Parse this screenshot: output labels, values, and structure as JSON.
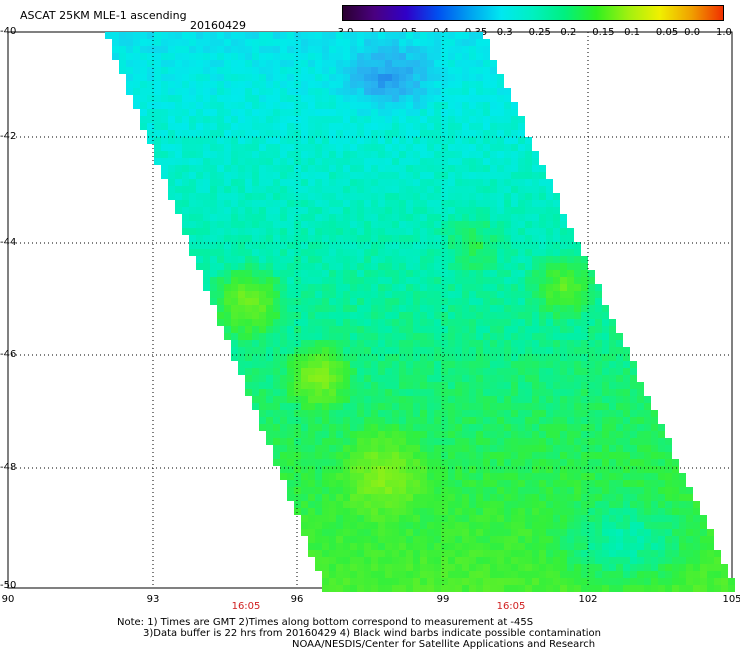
{
  "title": "ASCAT 25KM MLE-1 ascending",
  "date": "20160429",
  "colorbar": {
    "labels": [
      "-3.0",
      "-1.0",
      "-0.5",
      "-0.4",
      "-0.35",
      "-0.3",
      "-0.25",
      "-0.2",
      "-0.15",
      "-0.1",
      "-0.05",
      "0.0",
      "1.0"
    ],
    "colors": [
      "#2a0030",
      "#4a0080",
      "#3000c8",
      "#0050f0",
      "#00a0f0",
      "#00e8f0",
      "#00f0c0",
      "#00f080",
      "#30f020",
      "#a0f010",
      "#f0f000",
      "#f0a000",
      "#f03000"
    ]
  },
  "axes": {
    "lat_labels": [
      "-40",
      "-42",
      "-44",
      "-46",
      "-48",
      "-50"
    ],
    "lon_labels": [
      "90",
      "93",
      "96",
      "99",
      "102",
      "105"
    ],
    "time_labels": [
      "16:05",
      "16:05"
    ]
  },
  "notes": {
    "line1": "Note: 1) Times are GMT 2)Times along bottom correspond to measurement at -45S",
    "line2": "3)Data buffer is 22 hrs from 20160429 4) Black wind barbs indicate possible contamination",
    "line3": "NOAA/NESDIS/Center for Satellite Applications and Research"
  }
}
